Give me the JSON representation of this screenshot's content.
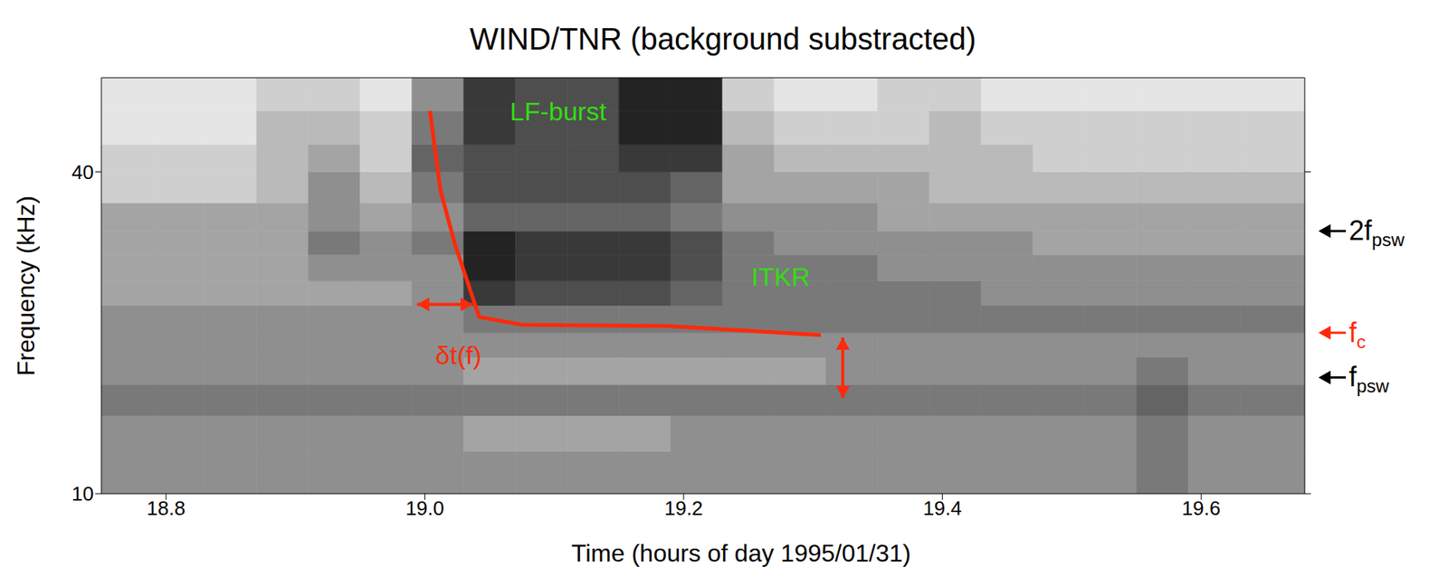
{
  "chart_data": {
    "type": "spectrogram",
    "title": "WIND/TNR (background substracted)",
    "x_label": "Time (hours of day 1995/01/31)",
    "y_label": "Frequency (kHz)",
    "xlim": [
      18.75,
      19.68
    ],
    "xticks": [
      18.8,
      {
        "value": 19,
        "label": "19.0"
      },
      19.2,
      19.4,
      19.6
    ],
    "ylim": [
      10,
      60
    ],
    "yticks": [
      10,
      40
    ],
    "log": "y",
    "cells": {
      "x_edges": [
        18.75,
        18.79,
        18.83,
        18.87,
        18.91,
        18.95,
        18.99,
        19.03,
        19.07,
        19.11,
        19.15,
        19.19,
        19.23,
        19.27,
        19.31,
        19.35,
        19.39,
        19.43,
        19.47,
        19.51,
        19.55,
        19.59,
        19.63,
        19.68
      ],
      "y_edges": [
        10,
        12,
        14,
        16,
        18,
        20,
        22.5,
        25,
        28,
        31,
        35,
        40,
        45,
        52,
        60
      ],
      "zlim": [
        0,
        10
      ],
      "values": [
        [
          5,
          5,
          5,
          5,
          5,
          5,
          5,
          5,
          5,
          5,
          5,
          5,
          5,
          5,
          5,
          5,
          5,
          5,
          5,
          5,
          6,
          5,
          5
        ],
        [
          5,
          5,
          5,
          5,
          5,
          5,
          5,
          4,
          4,
          4,
          4,
          5,
          5,
          5,
          5,
          5,
          5,
          5,
          5,
          5,
          6,
          5,
          5
        ],
        [
          6,
          6,
          6,
          6,
          6,
          6,
          6,
          6,
          6,
          6,
          6,
          6,
          6,
          6,
          6,
          6,
          6,
          6,
          6,
          6,
          7,
          6,
          6
        ],
        [
          5,
          5,
          5,
          5,
          5,
          5,
          5,
          4,
          4,
          4,
          4,
          4,
          4,
          4,
          5,
          5,
          5,
          5,
          5,
          5,
          6,
          5,
          5
        ],
        [
          5,
          5,
          5,
          5,
          5,
          5,
          5,
          5,
          5,
          5,
          5,
          5,
          5,
          5,
          5,
          5,
          5,
          5,
          5,
          5,
          5,
          5,
          5
        ],
        [
          5,
          5,
          5,
          5,
          5,
          5,
          5,
          6,
          6,
          6,
          6,
          6,
          6,
          6,
          6,
          6,
          6,
          6,
          6,
          6,
          6,
          6,
          6
        ],
        [
          4,
          4,
          4,
          4,
          4,
          4,
          5,
          9,
          8,
          8,
          8,
          7,
          6,
          6,
          6,
          6,
          6,
          5,
          5,
          5,
          5,
          5,
          5
        ],
        [
          4,
          4,
          4,
          4,
          5,
          5,
          5,
          10,
          9,
          9,
          9,
          8,
          6,
          6,
          6,
          5,
          5,
          5,
          5,
          5,
          5,
          5,
          5
        ],
        [
          4,
          4,
          4,
          4,
          6,
          5,
          6,
          10,
          9,
          9,
          9,
          8,
          6,
          5,
          5,
          5,
          5,
          5,
          4,
          4,
          4,
          4,
          4
        ],
        [
          4,
          4,
          4,
          4,
          5,
          4,
          5,
          7,
          7,
          7,
          7,
          6,
          5,
          5,
          5,
          4,
          4,
          4,
          4,
          4,
          4,
          4,
          4
        ],
        [
          2,
          2,
          2,
          3,
          5,
          3,
          6,
          8,
          8,
          8,
          8,
          7,
          4,
          4,
          4,
          4,
          3,
          3,
          3,
          3,
          3,
          3,
          3
        ],
        [
          2,
          2,
          2,
          3,
          4,
          2,
          7,
          8,
          8,
          8,
          9,
          9,
          4,
          3,
          3,
          3,
          3,
          3,
          2,
          2,
          2,
          2,
          2
        ],
        [
          1,
          1,
          1,
          3,
          3,
          2,
          6,
          9,
          8,
          8,
          10,
          10,
          3,
          2,
          2,
          2,
          3,
          2,
          2,
          2,
          2,
          2,
          2
        ],
        [
          1,
          1,
          1,
          2,
          2,
          1,
          5,
          9,
          8,
          8,
          10,
          10,
          2,
          1,
          1,
          2,
          2,
          1,
          1,
          1,
          1,
          1,
          1
        ]
      ]
    },
    "line": {
      "color": "#ff2a0a",
      "x": [
        19.004,
        19.012,
        19.023,
        19.042,
        19.075,
        19.186,
        19.306
      ],
      "values": [
        52,
        37,
        29.4,
        21.4,
        20.7,
        20.6,
        19.8
      ]
    },
    "annotations": [
      {
        "text": "LF-burst",
        "x": 19.103,
        "y": 52,
        "color": "#33dd11"
      },
      {
        "text": "ITKR",
        "x": 19.275,
        "y": 25.5,
        "color": "#33dd11"
      },
      {
        "text": "δt(f)",
        "x": 19.026,
        "y": 18.2,
        "color": "#ff2a0a"
      }
    ],
    "arrows": [
      {
        "x": [
          18.994,
          19.037
        ],
        "y": [
          22.6,
          22.6
        ],
        "color": "#ff2a0a"
      },
      {
        "x": [
          19.323,
          19.323
        ],
        "y": [
          19.6,
          15.1
        ],
        "color": "#ff2a0a"
      }
    ],
    "levels": [
      {
        "label": "2f",
        "subscript": "psw",
        "y": 31,
        "color": "#000000"
      },
      {
        "label": "f",
        "subscript": "c",
        "y": 20,
        "color": "#ff2a0a"
      },
      {
        "label": "f",
        "subscript": "psw",
        "y": 16.5,
        "color": "#000000"
      }
    ]
  }
}
